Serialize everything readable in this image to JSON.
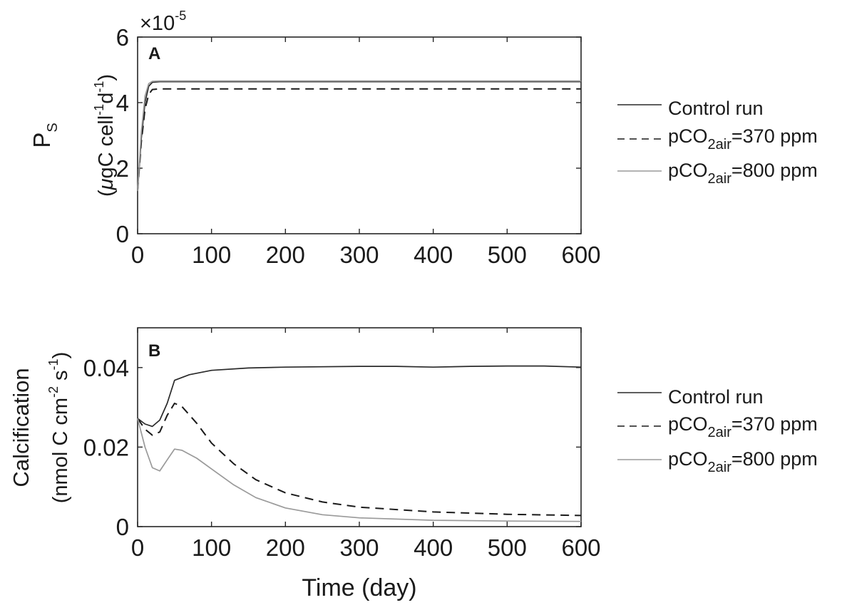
{
  "chart_data": [
    {
      "type": "line",
      "panel_label": "A",
      "ylabel_line1": {
        "main": "P",
        "sub": "S"
      },
      "ylabel_line2": {
        "a": "(",
        "mu": "μ",
        "b": "gC cell",
        "sup1": "-1",
        "c": "d",
        "sup2": "-1",
        "d": ")"
      },
      "y_exponent": {
        "times": "×10",
        "power": "-5"
      },
      "xlim": [
        0,
        600
      ],
      "ylim": [
        0,
        6
      ],
      "y_scale_note": "values × 10^-5",
      "xticks": [
        "0",
        "100",
        "200",
        "300",
        "400",
        "500",
        "600"
      ],
      "yticks": [
        "0",
        "2",
        "4",
        "6"
      ],
      "grid": false,
      "legend_position": "right",
      "series": [
        {
          "name": "Control run",
          "color": "#2a2a2a",
          "dash": "solid",
          "x": [
            0,
            5,
            10,
            15,
            20,
            30,
            50,
            100,
            200,
            300,
            400,
            500,
            600
          ],
          "y": [
            1.3,
            2.9,
            4.0,
            4.5,
            4.62,
            4.64,
            4.64,
            4.64,
            4.64,
            4.64,
            4.64,
            4.64,
            4.64
          ]
        },
        {
          "name": "pCO2air=370 ppm",
          "color": "#1a1a1a",
          "dash": "dashed",
          "x": [
            0,
            5,
            10,
            15,
            20,
            30,
            50,
            100,
            200,
            300,
            400,
            500,
            600
          ],
          "y": [
            1.3,
            2.8,
            3.8,
            4.25,
            4.4,
            4.42,
            4.42,
            4.42,
            4.42,
            4.42,
            4.42,
            4.42,
            4.42
          ]
        },
        {
          "name": "pCO2air=800 ppm",
          "color": "#9a9a9a",
          "dash": "solid",
          "x": [
            0,
            5,
            10,
            15,
            20,
            30,
            50,
            100,
            200,
            300,
            400,
            500,
            600
          ],
          "y": [
            1.3,
            3.1,
            4.2,
            4.58,
            4.65,
            4.66,
            4.66,
            4.66,
            4.66,
            4.66,
            4.66,
            4.66,
            4.66
          ]
        }
      ]
    },
    {
      "type": "line",
      "panel_label": "B",
      "ylabel_line1": {
        "main": "Calcification"
      },
      "ylabel_line2": {
        "a": "(nmol C cm",
        "sup1": "-2",
        "b": " s",
        "sup2": "-1",
        "c": ")"
      },
      "xlabel": "Time (day)",
      "xlim": [
        0,
        600
      ],
      "ylim": [
        0,
        0.05
      ],
      "xticks": [
        "0",
        "100",
        "200",
        "300",
        "400",
        "500",
        "600"
      ],
      "yticks": [
        "0",
        "0.02",
        "0.04"
      ],
      "grid": false,
      "legend_position": "right",
      "series": [
        {
          "name": "Control run",
          "color": "#2a2a2a",
          "dash": "solid",
          "x": [
            0,
            10,
            20,
            30,
            40,
            50,
            70,
            100,
            150,
            200,
            300,
            350,
            400,
            450,
            500,
            550,
            600
          ],
          "y": [
            0.0272,
            0.0258,
            0.0252,
            0.0268,
            0.031,
            0.0368,
            0.0382,
            0.0393,
            0.0399,
            0.0401,
            0.0403,
            0.0403,
            0.0401,
            0.0403,
            0.0404,
            0.0404,
            0.0401
          ]
        },
        {
          "name": "pCO2air=370 ppm",
          "color": "#1a1a1a",
          "dash": "dashed",
          "x": [
            0,
            10,
            20,
            30,
            40,
            50,
            60,
            80,
            100,
            130,
            160,
            200,
            250,
            300,
            400,
            500,
            600
          ],
          "y": [
            0.0272,
            0.0245,
            0.023,
            0.0238,
            0.028,
            0.031,
            0.0302,
            0.026,
            0.021,
            0.0158,
            0.0118,
            0.0085,
            0.0062,
            0.0049,
            0.0037,
            0.0031,
            0.0028
          ]
        },
        {
          "name": "pCO2air=800 ppm",
          "color": "#9a9a9a",
          "dash": "solid",
          "x": [
            0,
            10,
            20,
            30,
            40,
            50,
            60,
            80,
            100,
            130,
            160,
            200,
            250,
            300,
            400,
            500,
            600
          ],
          "y": [
            0.0272,
            0.02,
            0.0148,
            0.014,
            0.0168,
            0.0195,
            0.0192,
            0.0172,
            0.0145,
            0.0105,
            0.0073,
            0.0047,
            0.003,
            0.0022,
            0.0016,
            0.0014,
            0.0013
          ]
        }
      ]
    }
  ]
}
